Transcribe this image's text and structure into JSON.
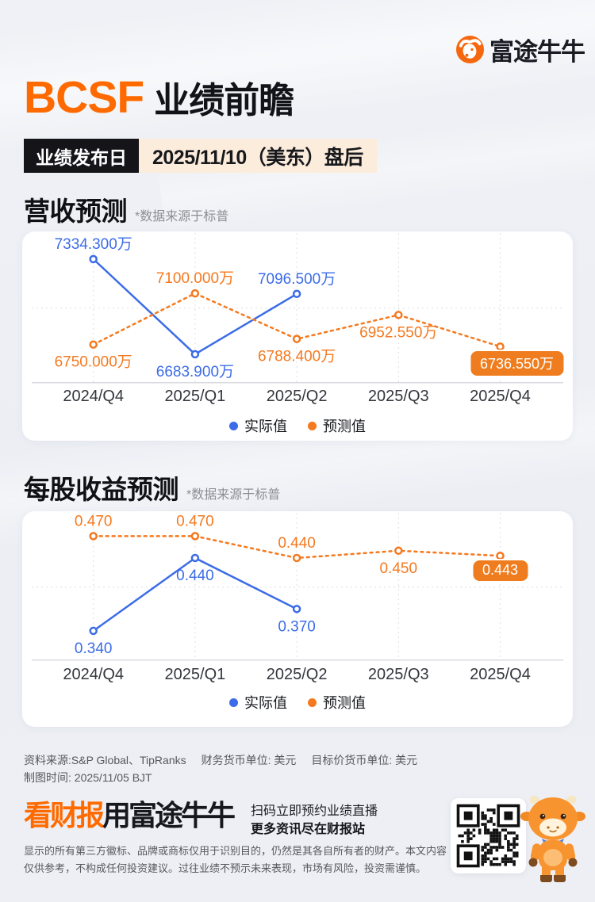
{
  "brand": {
    "logo_text": "富途牛牛"
  },
  "header": {
    "ticker": "BCSF",
    "title_suffix": "业绩前瞻"
  },
  "release": {
    "label": "业绩发布日",
    "value": "2025/11/10（美东）盘后"
  },
  "colors": {
    "accent": "#FF6A00",
    "actual": "#3C6CE7",
    "forecast": "#F5791F",
    "forecast_box": "#EF7D1F",
    "badge_bg": "#141419",
    "badge_value_bg": "#FCECDC",
    "card_bg": "#FFFFFF",
    "page_bg": "#EDEFF4"
  },
  "chart_data": [
    {
      "type": "line",
      "title": "营收预测",
      "source_note": "*数据来源于标普",
      "unit": "万",
      "categories": [
        "2024/Q4",
        "2025/Q1",
        "2025/Q2",
        "2025/Q3",
        "2025/Q4"
      ],
      "series": [
        {
          "name": "实际值",
          "color": "#3C6CE7",
          "dash": false,
          "values": [
            7334.3,
            6683.9,
            7096.5,
            null,
            null
          ],
          "labels": [
            "7334.300万",
            "6683.900万",
            "7096.500万",
            null,
            null
          ],
          "label_side": [
            "above",
            "below",
            "above",
            null,
            null
          ]
        },
        {
          "name": "预测值",
          "color": "#F5791F",
          "dash": true,
          "values": [
            6750.0,
            7100.0,
            6788.4,
            6952.55,
            6736.55
          ],
          "labels": [
            "6750.000万",
            "7100.000万",
            "6788.400万",
            "6952.550万",
            "6736.550万"
          ],
          "label_side": [
            "below",
            "above",
            "below",
            "below",
            "box"
          ]
        }
      ],
      "ylim": [
        6490,
        7480
      ],
      "gridlines": [
        7000
      ],
      "legend_position": "bottom",
      "grid": true
    },
    {
      "type": "line",
      "title": "每股收益预测",
      "source_note": "*数据来源于标普",
      "unit": "",
      "categories": [
        "2024/Q4",
        "2025/Q1",
        "2025/Q2",
        "2025/Q3",
        "2025/Q4"
      ],
      "series": [
        {
          "name": "实际值",
          "color": "#3C6CE7",
          "dash": false,
          "values": [
            0.34,
            0.44,
            0.37,
            null,
            null
          ],
          "labels": [
            "0.340",
            "0.440",
            "0.370",
            null,
            null
          ],
          "label_side": [
            "below",
            "below",
            "below",
            null,
            null
          ]
        },
        {
          "name": "预测值",
          "color": "#F5791F",
          "dash": true,
          "values": [
            0.47,
            0.47,
            0.44,
            0.45,
            0.443
          ],
          "labels": [
            "0.470",
            "0.470",
            "0.440",
            "0.450",
            "0.443"
          ],
          "label_side": [
            "above",
            "above",
            "above",
            "below",
            "box"
          ]
        }
      ],
      "ylim": [
        0.3,
        0.49
      ],
      "gridlines": [
        0.4
      ],
      "legend_position": "bottom",
      "grid": true
    }
  ],
  "footer": {
    "source_row": [
      "资料来源:S&P Global、TipRanks",
      "财务货币单位: 美元",
      "目标价货币单位: 美元"
    ],
    "chart_time": "制图时间: 2025/11/05 BJT"
  },
  "promo": {
    "headline_accent": "看财报",
    "headline_rest": "用富途牛牛",
    "line1": "扫码立即预约业绩直播",
    "line2": "更多资讯尽在财报站"
  },
  "disclaimer": "显示的所有第三方徽标、品牌或商标仅用于识别目的，仍然是其各自所有者的财产。本文内容仅供参考，不构成任何投资建议。过往业绩不预示未来表现，市场有风险，投资需谨慎。"
}
